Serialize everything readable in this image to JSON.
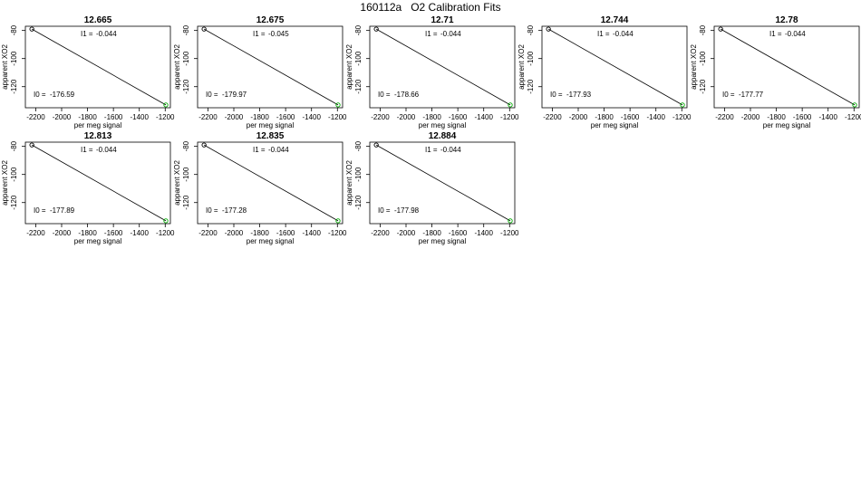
{
  "page_title": "160112a   O2 Calibration Fits",
  "chart_data": [
    {
      "type": "scatter",
      "title": "12.665",
      "xlabel": "per meg signal",
      "ylabel": "apparent XO2",
      "xlim": [
        -2280,
        -1160
      ],
      "ylim": [
        -135,
        -77
      ],
      "x_ticks": [
        -2200,
        -2000,
        -1800,
        -1600,
        -1400,
        -1200
      ],
      "y_ticks": [
        -80,
        -100,
        -120
      ],
      "points": [
        {
          "x": -2230,
          "y": -79
        },
        {
          "x": -1195,
          "y": -133
        }
      ],
      "fit_line": {
        "x": [
          -2230,
          -1195
        ],
        "y": [
          -79,
          -133
        ]
      },
      "annotations": [
        {
          "label": "I1 =",
          "value": "-0.044"
        },
        {
          "label": "I0 =",
          "value": "-176.59"
        }
      ]
    },
    {
      "type": "scatter",
      "title": "12.675",
      "xlabel": "per meg signal",
      "ylabel": "apparent XO2",
      "xlim": [
        -2280,
        -1160
      ],
      "ylim": [
        -135,
        -77
      ],
      "x_ticks": [
        -2200,
        -2000,
        -1800,
        -1600,
        -1400,
        -1200
      ],
      "y_ticks": [
        -80,
        -100,
        -120
      ],
      "points": [
        {
          "x": -2230,
          "y": -79
        },
        {
          "x": -1195,
          "y": -133
        }
      ],
      "fit_line": {
        "x": [
          -2230,
          -1195
        ],
        "y": [
          -79,
          -133
        ]
      },
      "annotations": [
        {
          "label": "I1 =",
          "value": "-0.045"
        },
        {
          "label": "I0 =",
          "value": "-179.97"
        }
      ]
    },
    {
      "type": "scatter",
      "title": "12.71",
      "xlabel": "per meg signal",
      "ylabel": "apparent XO2",
      "xlim": [
        -2280,
        -1160
      ],
      "ylim": [
        -135,
        -77
      ],
      "x_ticks": [
        -2200,
        -2000,
        -1800,
        -1600,
        -1400,
        -1200
      ],
      "y_ticks": [
        -80,
        -100,
        -120
      ],
      "points": [
        {
          "x": -2230,
          "y": -79
        },
        {
          "x": -1195,
          "y": -133
        }
      ],
      "fit_line": {
        "x": [
          -2230,
          -1195
        ],
        "y": [
          -79,
          -133
        ]
      },
      "annotations": [
        {
          "label": "I1 =",
          "value": "-0.044"
        },
        {
          "label": "I0 =",
          "value": "-178.66"
        }
      ]
    },
    {
      "type": "scatter",
      "title": "12.744",
      "xlabel": "per meg signal",
      "ylabel": "apparent XO2",
      "xlim": [
        -2280,
        -1160
      ],
      "ylim": [
        -135,
        -77
      ],
      "x_ticks": [
        -2200,
        -2000,
        -1800,
        -1600,
        -1400,
        -1200
      ],
      "y_ticks": [
        -80,
        -100,
        -120
      ],
      "points": [
        {
          "x": -2230,
          "y": -79
        },
        {
          "x": -1195,
          "y": -133
        }
      ],
      "fit_line": {
        "x": [
          -2230,
          -1195
        ],
        "y": [
          -79,
          -133
        ]
      },
      "annotations": [
        {
          "label": "I1 =",
          "value": "-0.044"
        },
        {
          "label": "I0 =",
          "value": "-177.93"
        }
      ]
    },
    {
      "type": "scatter",
      "title": "12.78",
      "xlabel": "per meg signal",
      "ylabel": "apparent XO2",
      "xlim": [
        -2280,
        -1160
      ],
      "ylim": [
        -135,
        -77
      ],
      "x_ticks": [
        -2200,
        -2000,
        -1800,
        -1600,
        -1400,
        -1200
      ],
      "y_ticks": [
        -80,
        -100,
        -120
      ],
      "points": [
        {
          "x": -2230,
          "y": -79
        },
        {
          "x": -1195,
          "y": -133
        }
      ],
      "fit_line": {
        "x": [
          -2230,
          -1195
        ],
        "y": [
          -79,
          -133
        ]
      },
      "annotations": [
        {
          "label": "I1 =",
          "value": "-0.044"
        },
        {
          "label": "I0 =",
          "value": "-177.77"
        }
      ]
    },
    {
      "type": "scatter",
      "title": "12.813",
      "xlabel": "per meg signal",
      "ylabel": "apparent XO2",
      "xlim": [
        -2280,
        -1160
      ],
      "ylim": [
        -135,
        -77
      ],
      "x_ticks": [
        -2200,
        -2000,
        -1800,
        -1600,
        -1400,
        -1200
      ],
      "y_ticks": [
        -80,
        -100,
        -120
      ],
      "points": [
        {
          "x": -2230,
          "y": -79
        },
        {
          "x": -1195,
          "y": -133
        }
      ],
      "fit_line": {
        "x": [
          -2230,
          -1195
        ],
        "y": [
          -79,
          -133
        ]
      },
      "annotations": [
        {
          "label": "I1 =",
          "value": "-0.044"
        },
        {
          "label": "I0 =",
          "value": "-177.89"
        }
      ]
    },
    {
      "type": "scatter",
      "title": "12.835",
      "xlabel": "per meg signal",
      "ylabel": "apparent XO2",
      "xlim": [
        -2280,
        -1160
      ],
      "ylim": [
        -135,
        -77
      ],
      "x_ticks": [
        -2200,
        -2000,
        -1800,
        -1600,
        -1400,
        -1200
      ],
      "y_ticks": [
        -80,
        -100,
        -120
      ],
      "points": [
        {
          "x": -2230,
          "y": -79
        },
        {
          "x": -1195,
          "y": -133
        }
      ],
      "fit_line": {
        "x": [
          -2230,
          -1195
        ],
        "y": [
          -79,
          -133
        ]
      },
      "annotations": [
        {
          "label": "I1 =",
          "value": "-0.044"
        },
        {
          "label": "I0 =",
          "value": "-177.28"
        }
      ]
    },
    {
      "type": "scatter",
      "title": "12.884",
      "xlabel": "per meg signal",
      "ylabel": "apparent XO2",
      "xlim": [
        -2280,
        -1160
      ],
      "ylim": [
        -135,
        -77
      ],
      "x_ticks": [
        -2200,
        -2000,
        -1800,
        -1600,
        -1400,
        -1200
      ],
      "y_ticks": [
        -80,
        -100,
        -120
      ],
      "points": [
        {
          "x": -2230,
          "y": -79
        },
        {
          "x": -1195,
          "y": -133
        }
      ],
      "fit_line": {
        "x": [
          -2230,
          -1195
        ],
        "y": [
          -79,
          -133
        ]
      },
      "annotations": [
        {
          "label": "I1 =",
          "value": "-0.044"
        },
        {
          "label": "I0 =",
          "value": "-177.98"
        }
      ]
    }
  ],
  "colors": {
    "point_first": "#000000",
    "point_last": "#00aa00",
    "fit_line": "#000000",
    "axis": "#000000"
  }
}
